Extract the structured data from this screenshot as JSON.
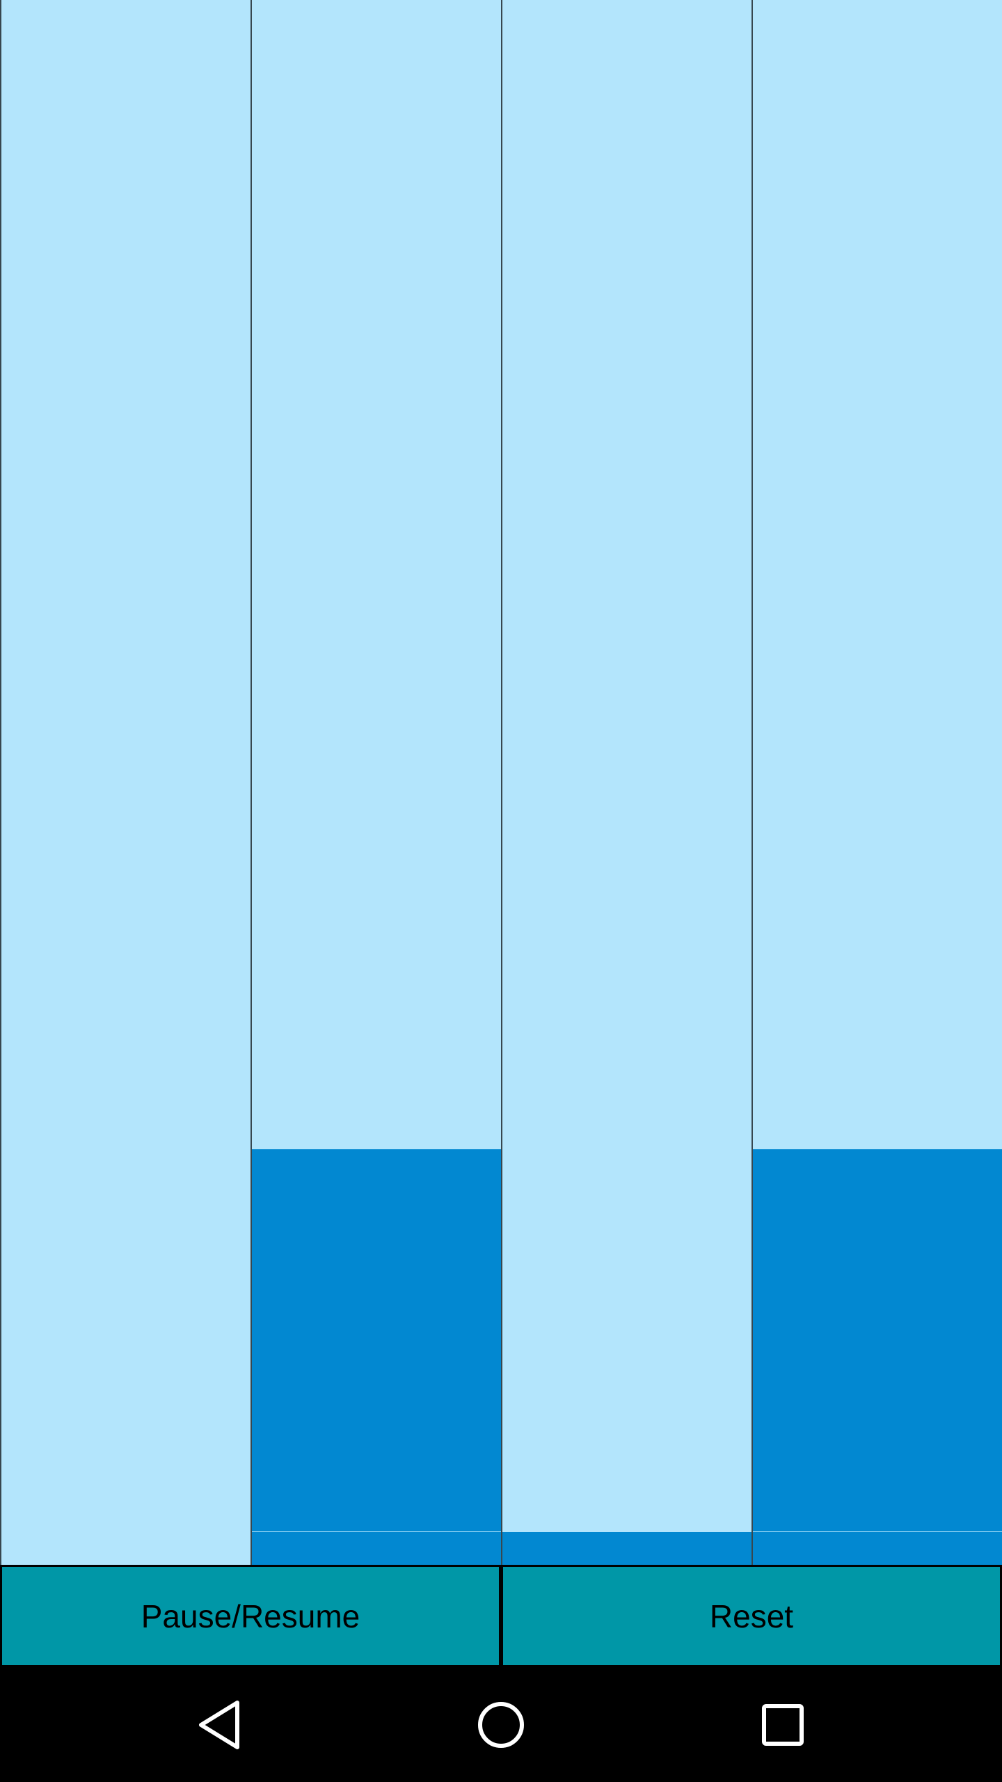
{
  "game": {
    "columns": [
      {
        "name": "column-1",
        "tiles": []
      },
      {
        "name": "column-2",
        "tiles": [
          "big",
          "small"
        ]
      },
      {
        "name": "column-3",
        "tiles": [
          "small"
        ]
      },
      {
        "name": "column-4",
        "tiles": [
          "big",
          "small"
        ]
      }
    ]
  },
  "controls": {
    "pause_label": "Pause/Resume",
    "reset_label": "Reset"
  },
  "navbar": {
    "back_icon": "back-triangle-icon",
    "home_icon": "home-circle-icon",
    "recent_icon": "recent-apps-square-icon"
  },
  "colors": {
    "background": "#b3e5fc",
    "tile": "#0288d1",
    "button": "#0097a7"
  }
}
